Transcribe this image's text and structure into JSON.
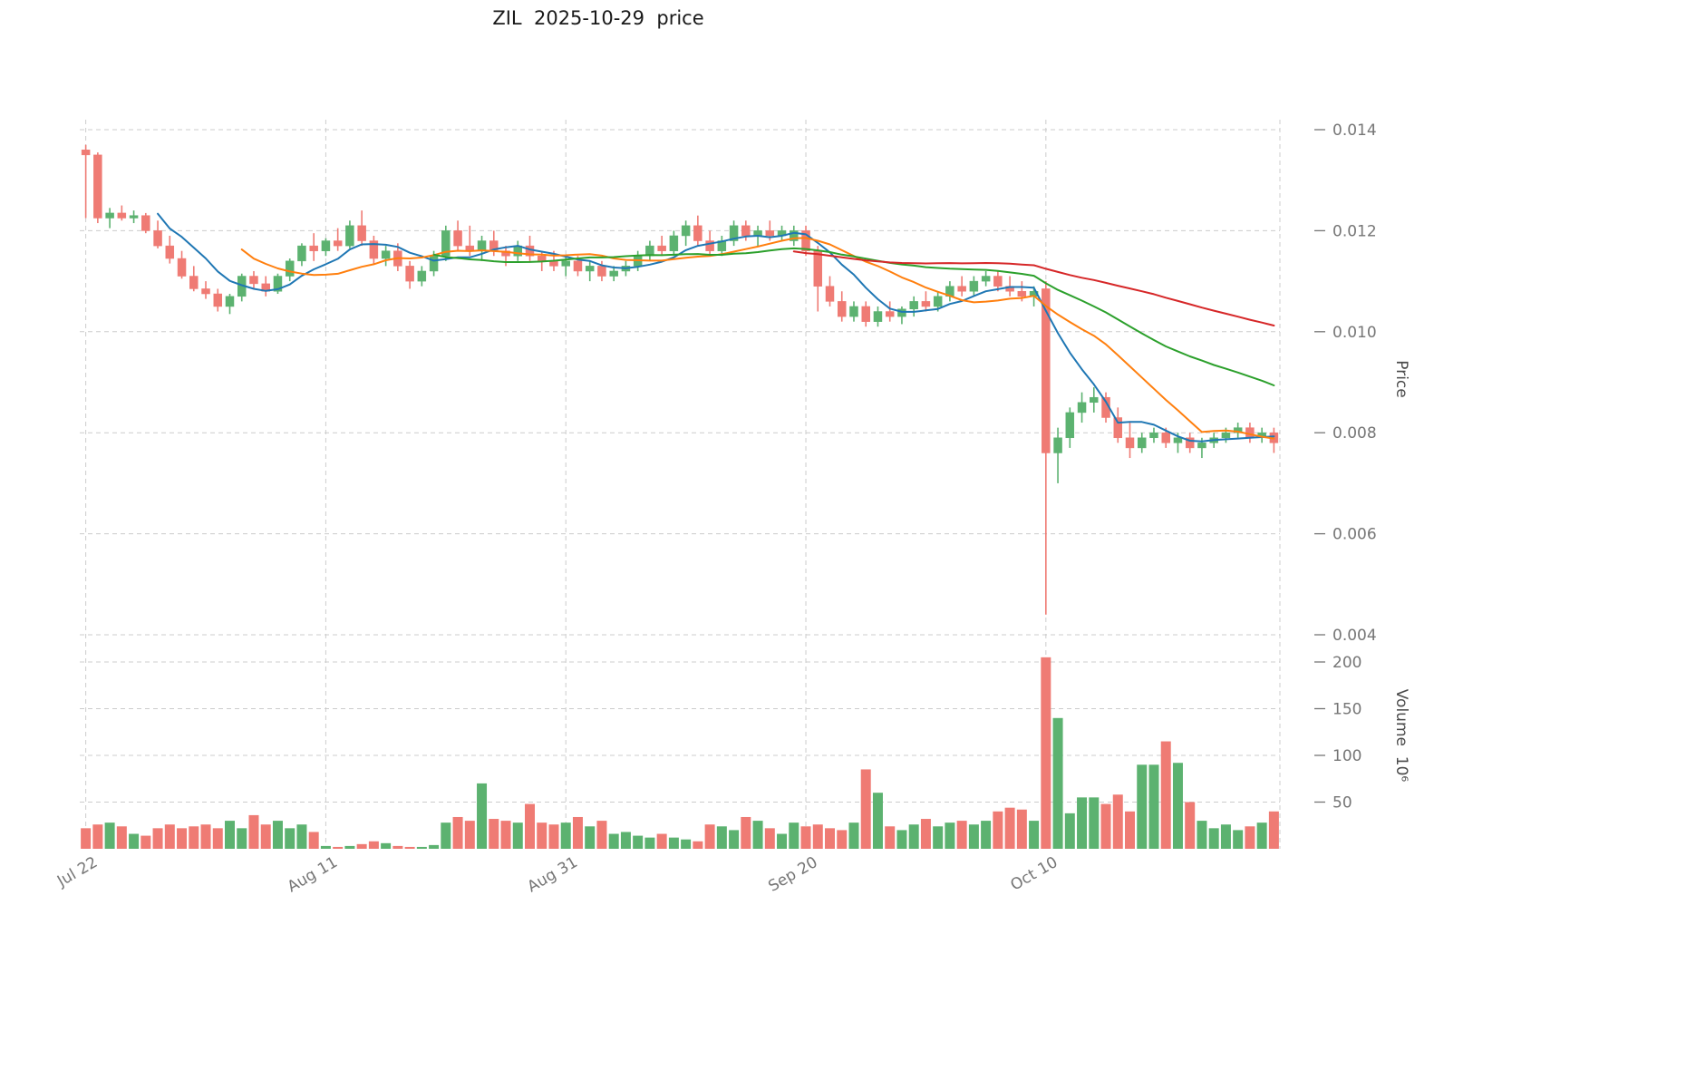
{
  "chart_data": {
    "type": "candlestick",
    "title": "ZIL  2025-10-29  price",
    "symbol": "ZIL",
    "as_of_date": "2025-10-29",
    "legend_position": "none",
    "grid": true,
    "price_axis": {
      "label": "Price",
      "tick_values": [
        0.014,
        0.012,
        0.01,
        0.008,
        0.006,
        0.004
      ],
      "tick_labels": [
        "0.014",
        "0.012",
        "0.010",
        "0.008",
        "0.006",
        "0.004"
      ]
    },
    "volume_axis": {
      "label": "Volume  10⁶",
      "tick_values": [
        200,
        150,
        100,
        50
      ],
      "tick_labels": [
        "200",
        "150",
        "100",
        "50"
      ]
    },
    "x_axis": {
      "ticks": [
        {
          "index": 0,
          "label": "Jul 22"
        },
        {
          "index": 20,
          "label": "Aug 11"
        },
        {
          "index": 40,
          "label": "Aug 31"
        },
        {
          "index": 60,
          "label": "Sep 20"
        },
        {
          "index": 80,
          "label": "Oct 10"
        }
      ]
    },
    "moving_averages": [
      {
        "window": 7,
        "color": "#1f77b4"
      },
      {
        "window": 14,
        "color": "#ff7f0e"
      },
      {
        "window": 30,
        "color": "#2ca02c"
      },
      {
        "window": 60,
        "color": "#d62728"
      }
    ],
    "colors": {
      "up": "#5cb270",
      "down": "#ef7b74",
      "grid": "#cccccc",
      "tick_text": "#757575",
      "title_text": "#1a1a1a"
    },
    "ohlcv": [
      [
        0.0136,
        0.0137,
        0.01225,
        0.0135,
        22
      ],
      [
        0.0135,
        0.01355,
        0.01215,
        0.01225,
        26
      ],
      [
        0.01225,
        0.01245,
        0.01205,
        0.01235,
        28
      ],
      [
        0.01235,
        0.0125,
        0.0122,
        0.01225,
        24
      ],
      [
        0.01225,
        0.0124,
        0.01215,
        0.0123,
        16
      ],
      [
        0.0123,
        0.01235,
        0.01195,
        0.012,
        14
      ],
      [
        0.012,
        0.0122,
        0.01165,
        0.0117,
        22
      ],
      [
        0.0117,
        0.0119,
        0.01135,
        0.01145,
        26
      ],
      [
        0.01145,
        0.0116,
        0.01105,
        0.0111,
        22
      ],
      [
        0.0111,
        0.0113,
        0.0108,
        0.01085,
        24
      ],
      [
        0.01085,
        0.011,
        0.01065,
        0.01075,
        26
      ],
      [
        0.01075,
        0.01085,
        0.0104,
        0.0105,
        22
      ],
      [
        0.0105,
        0.01075,
        0.01035,
        0.0107,
        30
      ],
      [
        0.0107,
        0.01115,
        0.0106,
        0.0111,
        22
      ],
      [
        0.0111,
        0.0112,
        0.01085,
        0.01095,
        36
      ],
      [
        0.01095,
        0.0111,
        0.0107,
        0.0108,
        26
      ],
      [
        0.0108,
        0.01115,
        0.01075,
        0.0111,
        30
      ],
      [
        0.0111,
        0.01145,
        0.011,
        0.0114,
        22
      ],
      [
        0.0114,
        0.01175,
        0.0113,
        0.0117,
        26
      ],
      [
        0.0117,
        0.01195,
        0.0114,
        0.0116,
        18
      ],
      [
        0.0116,
        0.01185,
        0.0115,
        0.0118,
        3
      ],
      [
        0.0118,
        0.01205,
        0.0116,
        0.0117,
        2
      ],
      [
        0.0117,
        0.0122,
        0.01165,
        0.0121,
        3
      ],
      [
        0.0121,
        0.0124,
        0.0117,
        0.0118,
        5
      ],
      [
        0.0118,
        0.0119,
        0.01135,
        0.01145,
        8
      ],
      [
        0.01145,
        0.0117,
        0.0113,
        0.0116,
        6
      ],
      [
        0.0116,
        0.01175,
        0.0112,
        0.0113,
        3
      ],
      [
        0.0113,
        0.0114,
        0.01085,
        0.011,
        2
      ],
      [
        0.011,
        0.0113,
        0.0109,
        0.0112,
        2
      ],
      [
        0.0112,
        0.0116,
        0.0111,
        0.0115,
        4
      ],
      [
        0.0115,
        0.0121,
        0.0114,
        0.012,
        28
      ],
      [
        0.012,
        0.0122,
        0.0116,
        0.0117,
        34
      ],
      [
        0.0117,
        0.0121,
        0.0115,
        0.0116,
        30
      ],
      [
        0.0116,
        0.0119,
        0.0114,
        0.0118,
        70
      ],
      [
        0.0118,
        0.012,
        0.0115,
        0.0116,
        32
      ],
      [
        0.0116,
        0.0117,
        0.0113,
        0.0115,
        30
      ],
      [
        0.0115,
        0.0118,
        0.0114,
        0.0117,
        28
      ],
      [
        0.0117,
        0.0119,
        0.0114,
        0.0115,
        48
      ],
      [
        0.0115,
        0.0116,
        0.0112,
        0.0114,
        28
      ],
      [
        0.0114,
        0.0116,
        0.0112,
        0.0113,
        26
      ],
      [
        0.0113,
        0.0115,
        0.0111,
        0.0114,
        28
      ],
      [
        0.0114,
        0.0115,
        0.0111,
        0.0112,
        34
      ],
      [
        0.0112,
        0.0114,
        0.011,
        0.0113,
        24
      ],
      [
        0.0113,
        0.0114,
        0.011,
        0.0111,
        30
      ],
      [
        0.0111,
        0.0113,
        0.011,
        0.0112,
        16
      ],
      [
        0.0112,
        0.0114,
        0.0111,
        0.0113,
        18
      ],
      [
        0.0113,
        0.0116,
        0.0112,
        0.0115,
        14
      ],
      [
        0.0115,
        0.0118,
        0.0114,
        0.0117,
        12
      ],
      [
        0.0117,
        0.0119,
        0.0115,
        0.0116,
        16
      ],
      [
        0.0116,
        0.012,
        0.0115,
        0.0119,
        12
      ],
      [
        0.0119,
        0.0122,
        0.0117,
        0.0121,
        10
      ],
      [
        0.0121,
        0.0123,
        0.0117,
        0.0118,
        8
      ],
      [
        0.0118,
        0.012,
        0.0115,
        0.0116,
        26
      ],
      [
        0.0116,
        0.0119,
        0.0115,
        0.0118,
        24
      ],
      [
        0.0118,
        0.0122,
        0.0117,
        0.0121,
        20
      ],
      [
        0.0121,
        0.0122,
        0.0118,
        0.0119,
        34
      ],
      [
        0.0119,
        0.0121,
        0.0117,
        0.012,
        30
      ],
      [
        0.012,
        0.0122,
        0.0118,
        0.0119,
        22
      ],
      [
        0.0119,
        0.0121,
        0.0118,
        0.012,
        16
      ],
      [
        0.0118,
        0.0121,
        0.0117,
        0.012,
        28
      ],
      [
        0.012,
        0.0121,
        0.0115,
        0.0116,
        24
      ],
      [
        0.0116,
        0.0117,
        0.0104,
        0.0109,
        26
      ],
      [
        0.0109,
        0.0111,
        0.0105,
        0.0106,
        22
      ],
      [
        0.0106,
        0.0108,
        0.0102,
        0.0103,
        20
      ],
      [
        0.0103,
        0.0106,
        0.0102,
        0.0105,
        28
      ],
      [
        0.0105,
        0.0106,
        0.0101,
        0.0102,
        85
      ],
      [
        0.0102,
        0.0105,
        0.0101,
        0.0104,
        60
      ],
      [
        0.0104,
        0.0106,
        0.0102,
        0.0103,
        24
      ],
      [
        0.0103,
        0.0105,
        0.01015,
        0.01045,
        20
      ],
      [
        0.01045,
        0.0107,
        0.0103,
        0.0106,
        26
      ],
      [
        0.0106,
        0.0108,
        0.0104,
        0.0105,
        32
      ],
      [
        0.0105,
        0.0108,
        0.0104,
        0.0107,
        24
      ],
      [
        0.0107,
        0.011,
        0.0106,
        0.0109,
        28
      ],
      [
        0.0109,
        0.0111,
        0.0107,
        0.0108,
        30
      ],
      [
        0.0108,
        0.0111,
        0.0107,
        0.011,
        26
      ],
      [
        0.011,
        0.0112,
        0.0109,
        0.0111,
        30
      ],
      [
        0.0111,
        0.0112,
        0.0108,
        0.0109,
        40
      ],
      [
        0.0109,
        0.0111,
        0.0107,
        0.0108,
        44
      ],
      [
        0.0108,
        0.011,
        0.0106,
        0.0107,
        42
      ],
      [
        0.0107,
        0.0109,
        0.0105,
        0.0108,
        30
      ],
      [
        0.01085,
        0.011,
        0.0044,
        0.0076,
        205
      ],
      [
        0.0076,
        0.0081,
        0.007,
        0.0079,
        140
      ],
      [
        0.0079,
        0.0085,
        0.0077,
        0.0084,
        38
      ],
      [
        0.0084,
        0.0088,
        0.0082,
        0.0086,
        55
      ],
      [
        0.0086,
        0.0089,
        0.0084,
        0.0087,
        55
      ],
      [
        0.0087,
        0.0088,
        0.0082,
        0.0083,
        48
      ],
      [
        0.0083,
        0.0085,
        0.0078,
        0.0079,
        58
      ],
      [
        0.0079,
        0.0082,
        0.0075,
        0.0077,
        40
      ],
      [
        0.0077,
        0.008,
        0.0076,
        0.0079,
        90
      ],
      [
        0.0079,
        0.0081,
        0.0078,
        0.008,
        90
      ],
      [
        0.008,
        0.0081,
        0.0077,
        0.0078,
        115
      ],
      [
        0.0078,
        0.008,
        0.0076,
        0.0079,
        92
      ],
      [
        0.0079,
        0.008,
        0.0076,
        0.0077,
        50
      ],
      [
        0.0077,
        0.0079,
        0.0075,
        0.0078,
        30
      ],
      [
        0.0078,
        0.008,
        0.0077,
        0.0079,
        22
      ],
      [
        0.0079,
        0.0081,
        0.0078,
        0.008,
        26
      ],
      [
        0.008,
        0.0082,
        0.0079,
        0.0081,
        20
      ],
      [
        0.0081,
        0.0082,
        0.0078,
        0.0079,
        24
      ],
      [
        0.0079,
        0.0081,
        0.0078,
        0.008,
        28
      ],
      [
        0.008,
        0.0081,
        0.0076,
        0.0078,
        40
      ]
    ]
  }
}
